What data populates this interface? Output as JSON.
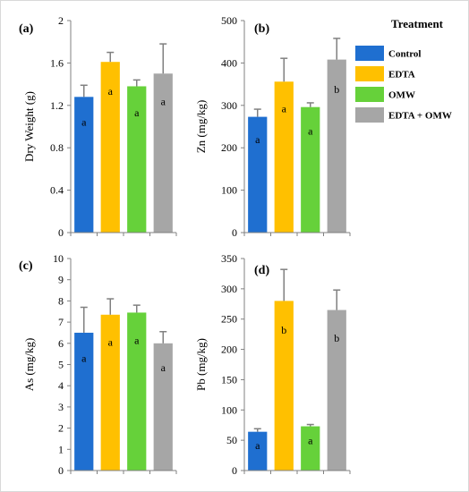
{
  "colors": {
    "control": "#1f6fd0",
    "edta": "#ffc000",
    "omw": "#66d13a",
    "edta_omw": "#a6a6a6",
    "axis": "#808080",
    "error_bar": "#808080"
  },
  "legend": {
    "title": "Treatment",
    "items": [
      {
        "label": "Control",
        "color_key": "control"
      },
      {
        "label": "EDTA",
        "color_key": "edta"
      },
      {
        "label": "OMW",
        "color_key": "omw"
      },
      {
        "label": "EDTA + OMW",
        "color_key": "edta_omw"
      }
    ]
  },
  "chart_data": [
    {
      "type": "bar",
      "panel": "(a)",
      "ylabel": "Dry Weight (g)",
      "ylim": [
        0,
        2
      ],
      "yticks": [
        "0",
        "0.4",
        "0.8",
        "1.2",
        "1.6",
        "2"
      ],
      "ytick_values": [
        0,
        0.4,
        0.8,
        1.2,
        1.6,
        2
      ],
      "categories": [
        "Control",
        "EDTA",
        "OMW",
        "EDTA + OMW"
      ],
      "values": [
        1.28,
        1.61,
        1.38,
        1.5
      ],
      "errors": [
        0.11,
        0.09,
        0.06,
        0.28
      ],
      "letters": [
        "a",
        "a",
        "a",
        "a"
      ]
    },
    {
      "type": "bar",
      "panel": "(b)",
      "ylabel": "Zn (mg/kg)",
      "ylim": [
        0,
        500
      ],
      "yticks": [
        "0",
        "100",
        "200",
        "300",
        "400",
        "500"
      ],
      "ytick_values": [
        0,
        100,
        200,
        300,
        400,
        500
      ],
      "categories": [
        "Control",
        "EDTA",
        "OMW",
        "EDTA + OMW"
      ],
      "values": [
        273,
        356,
        296,
        408
      ],
      "errors": [
        18,
        55,
        10,
        50
      ],
      "letters": [
        "a",
        "a",
        "a",
        "b"
      ]
    },
    {
      "type": "bar",
      "panel": "(c)",
      "ylabel": "As (mg/kg)",
      "ylim": [
        0,
        10
      ],
      "yticks": [
        "0",
        "1",
        "2",
        "3",
        "4",
        "5",
        "6",
        "7",
        "8",
        "9",
        "10"
      ],
      "ytick_values": [
        0,
        1,
        2,
        3,
        4,
        5,
        6,
        7,
        8,
        9,
        10
      ],
      "categories": [
        "Control",
        "EDTA",
        "OMW",
        "EDTA + OMW"
      ],
      "values": [
        6.5,
        7.35,
        7.45,
        6.0
      ],
      "errors": [
        1.2,
        0.75,
        0.35,
        0.55
      ],
      "letters": [
        "a",
        "a",
        "a",
        "a"
      ]
    },
    {
      "type": "bar",
      "panel": "(d)",
      "ylabel": "Pb (mg/kg)",
      "ylim": [
        0,
        350
      ],
      "yticks": [
        "0",
        "50",
        "100",
        "150",
        "200",
        "250",
        "300",
        "350"
      ],
      "ytick_values": [
        0,
        50,
        100,
        150,
        200,
        250,
        300,
        350
      ],
      "categories": [
        "Control",
        "EDTA",
        "OMW",
        "EDTA + OMW"
      ],
      "values": [
        64,
        280,
        73,
        265
      ],
      "errors": [
        5,
        52,
        3,
        33
      ],
      "letters": [
        "a",
        "b",
        "a",
        "b"
      ]
    }
  ]
}
